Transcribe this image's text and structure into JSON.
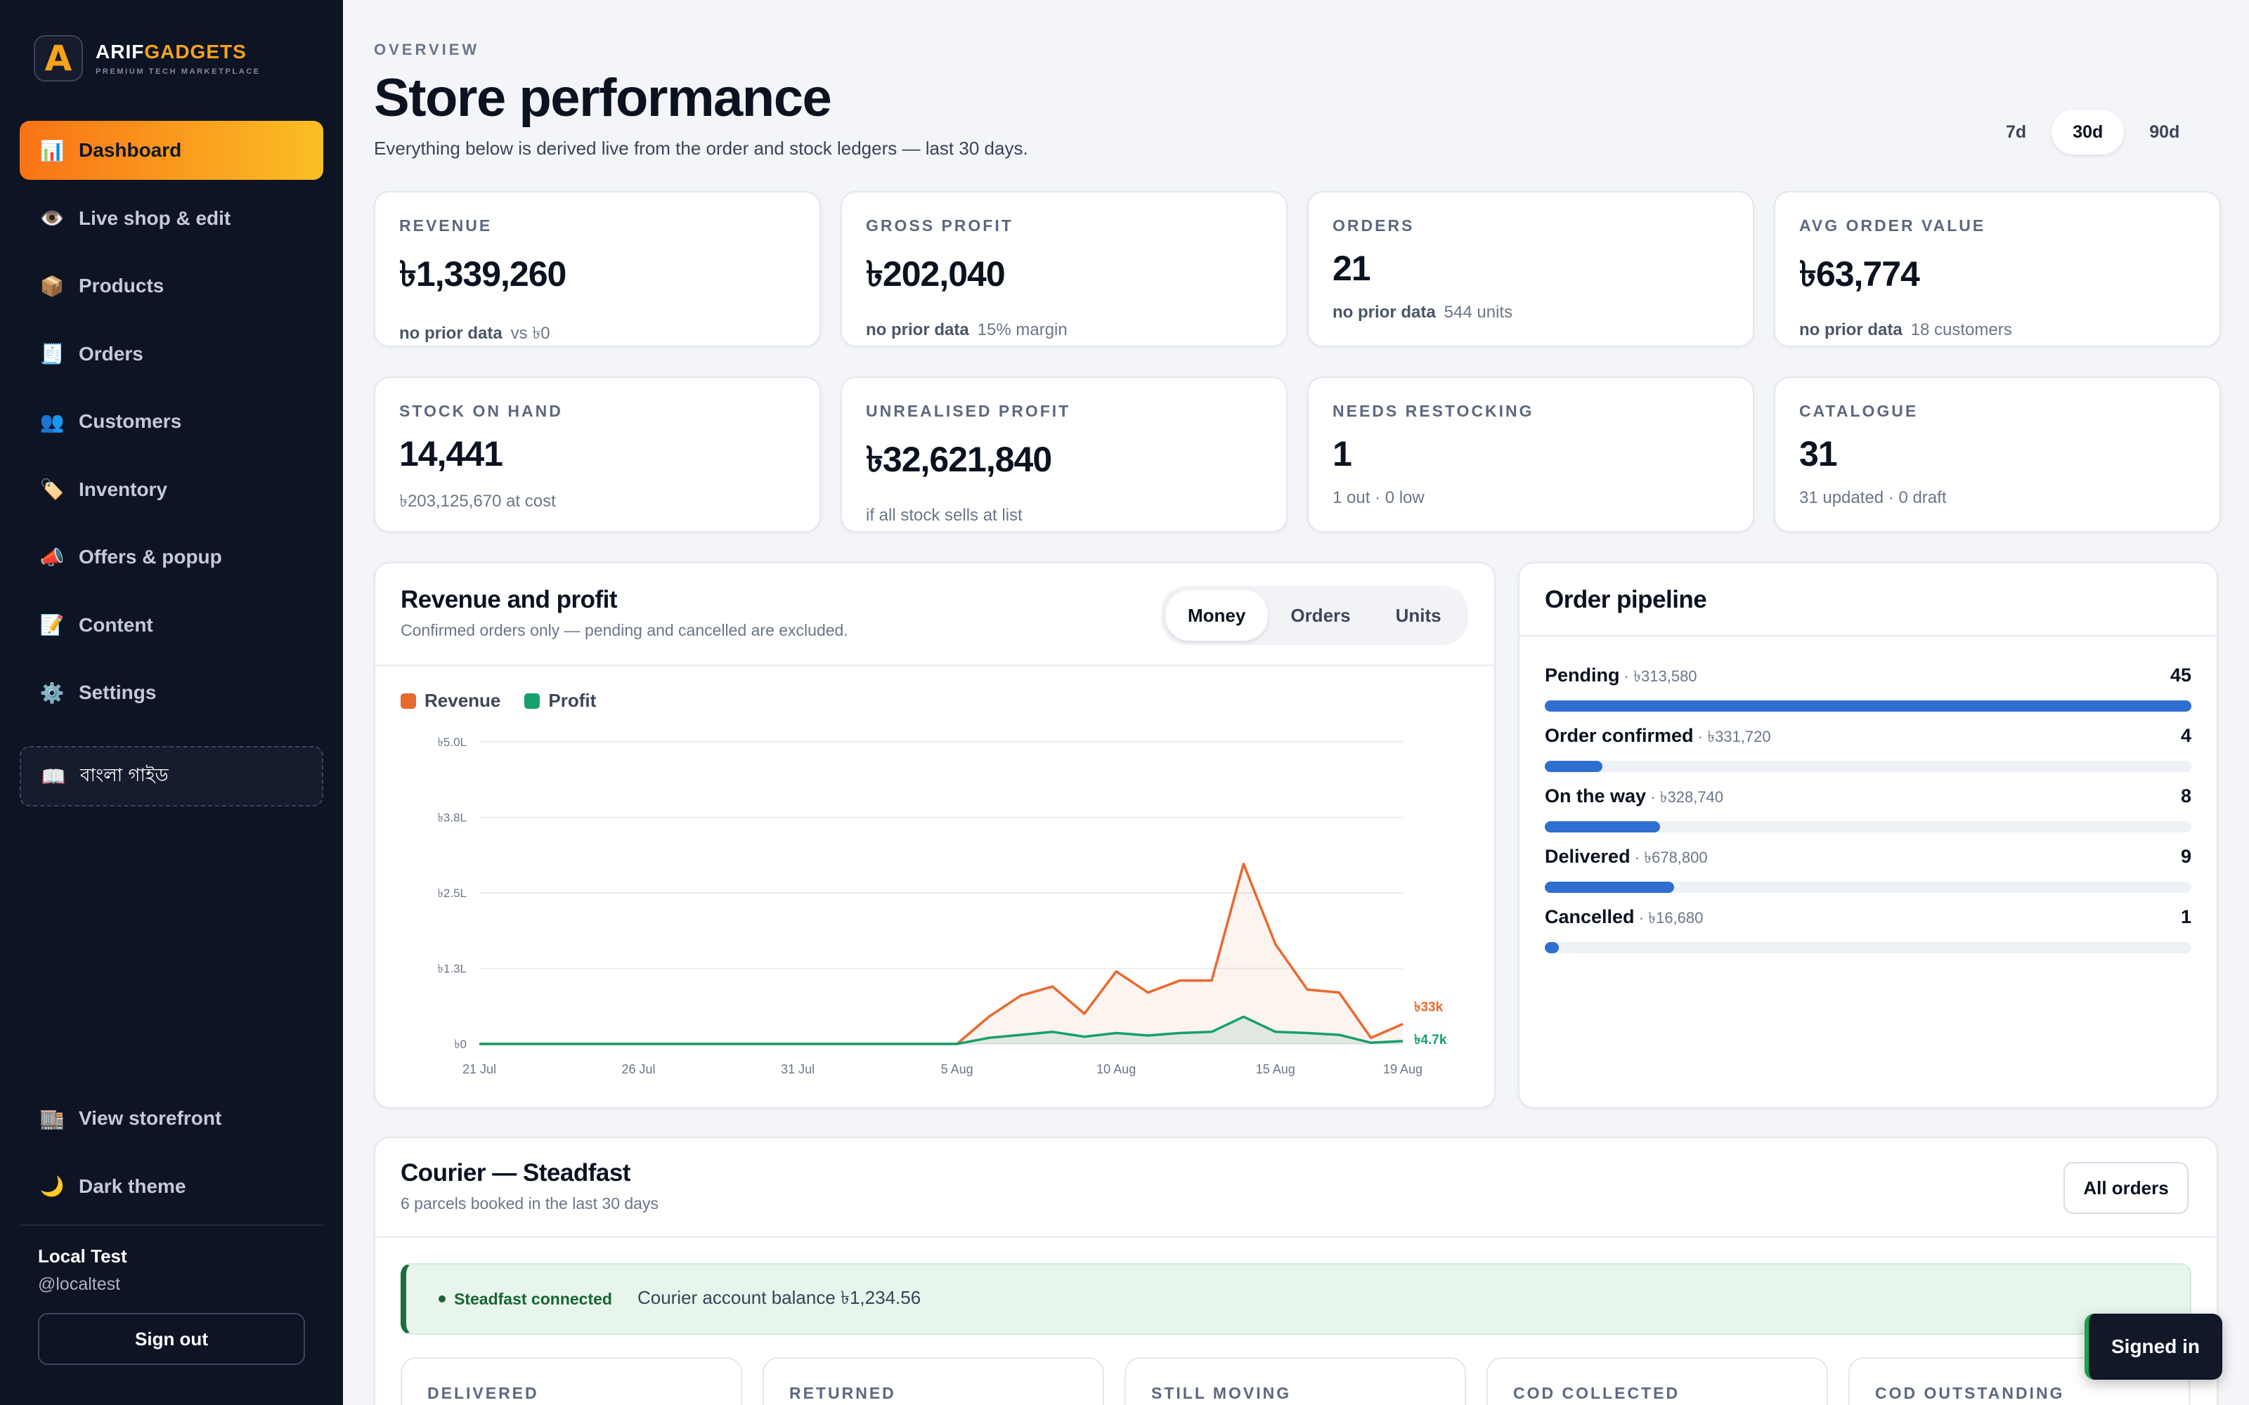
{
  "brand": {
    "name_main": "ARIF",
    "name_accent": "GADGETS",
    "tagline": "PREMIUM TECH MARKETPLACE",
    "logo_letter": "A"
  },
  "sidebar": {
    "items": [
      {
        "label": "Dashboard",
        "icon": "bar-chart-icon",
        "glyph": "📊",
        "active": true
      },
      {
        "label": "Live shop & edit",
        "icon": "eye-icon",
        "glyph": "👁️"
      },
      {
        "label": "Products",
        "icon": "box-icon",
        "glyph": "📦"
      },
      {
        "label": "Orders",
        "icon": "receipt-icon",
        "glyph": "🧾"
      },
      {
        "label": "Customers",
        "icon": "people-icon",
        "glyph": "👥"
      },
      {
        "label": "Inventory",
        "icon": "tag-icon",
        "glyph": "🏷️"
      },
      {
        "label": "Offers & popup",
        "icon": "megaphone-icon",
        "glyph": "📣"
      },
      {
        "label": "Content",
        "icon": "memo-icon",
        "glyph": "📝"
      },
      {
        "label": "Settings",
        "icon": "gear-icon",
        "glyph": "⚙️"
      }
    ],
    "guide": {
      "label": "বাংলা গাইড",
      "icon": "book-icon",
      "glyph": "📖"
    },
    "bottom": [
      {
        "label": "View storefront",
        "icon": "storefront-icon",
        "glyph": "🏬"
      },
      {
        "label": "Dark theme",
        "icon": "moon-icon",
        "glyph": "🌙"
      }
    ],
    "user": {
      "name": "Local Test",
      "handle": "@localtest"
    },
    "signout_label": "Sign out"
  },
  "header": {
    "eyebrow": "OVERVIEW",
    "title": "Store performance",
    "subtitle": "Everything below is derived live from the order and stock ledgers — last 30 days.",
    "ranges": [
      {
        "label": "7d"
      },
      {
        "label": "30d",
        "active": true
      },
      {
        "label": "90d"
      }
    ]
  },
  "kpis": [
    {
      "label": "REVENUE",
      "value": "৳1,339,260",
      "note_bold": "no prior data",
      "note": "vs ৳0"
    },
    {
      "label": "GROSS PROFIT",
      "value": "৳202,040",
      "note_bold": "no prior data",
      "note": "15% margin"
    },
    {
      "label": "ORDERS",
      "value": "21",
      "note_bold": "no prior data",
      "note": "544 units"
    },
    {
      "label": "AVG ORDER VALUE",
      "value": "৳63,774",
      "note_bold": "no prior data",
      "note": "18 customers"
    },
    {
      "label": "STOCK ON HAND",
      "value": "14,441",
      "note": "৳203,125,670 at cost"
    },
    {
      "label": "UNREALISED PROFIT",
      "value": "৳32,621,840",
      "note": "if all stock sells at list"
    },
    {
      "label": "NEEDS RESTOCKING",
      "value": "1",
      "note": "1 out · 0 low"
    },
    {
      "label": "CATALOGUE",
      "value": "31",
      "note": "31 updated · 0 draft"
    }
  ],
  "revenue_panel": {
    "title": "Revenue and profit",
    "subtitle": "Confirmed orders only — pending and cancelled are excluded.",
    "tabs": [
      {
        "label": "Money",
        "active": true
      },
      {
        "label": "Orders"
      },
      {
        "label": "Units"
      }
    ]
  },
  "chart_data": {
    "type": "area",
    "x_dates": [
      "21 Jul",
      "22 Jul",
      "23 Jul",
      "24 Jul",
      "25 Jul",
      "26 Jul",
      "27 Jul",
      "28 Jul",
      "29 Jul",
      "30 Jul",
      "31 Jul",
      "1 Aug",
      "2 Aug",
      "3 Aug",
      "4 Aug",
      "5 Aug",
      "6 Aug",
      "7 Aug",
      "8 Aug",
      "9 Aug",
      "10 Aug",
      "11 Aug",
      "12 Aug",
      "13 Aug",
      "14 Aug",
      "15 Aug",
      "16 Aug",
      "17 Aug",
      "18 Aug",
      "19 Aug"
    ],
    "x_tick_labels": [
      "21 Jul",
      "26 Jul",
      "31 Jul",
      "5 Aug",
      "10 Aug",
      "15 Aug",
      "19 Aug"
    ],
    "y_tick_labels": [
      "৳0",
      "৳1.3L",
      "৳2.5L",
      "৳3.8L",
      "৳5.0L"
    ],
    "y_ticks": [
      0,
      125000,
      250000,
      375000,
      500000
    ],
    "ylim": [
      0,
      500000
    ],
    "series": [
      {
        "name": "Revenue",
        "color": "#e8692f",
        "values": [
          0,
          0,
          0,
          0,
          0,
          0,
          0,
          0,
          0,
          0,
          0,
          0,
          0,
          0,
          0,
          0,
          45000,
          80000,
          95000,
          50000,
          120000,
          85000,
          105000,
          105000,
          298000,
          165000,
          90000,
          85000,
          10000,
          33000
        ],
        "end_label": "৳33k"
      },
      {
        "name": "Profit",
        "color": "#16a06b",
        "values": [
          0,
          0,
          0,
          0,
          0,
          0,
          0,
          0,
          0,
          0,
          0,
          0,
          0,
          0,
          0,
          0,
          10000,
          15000,
          20000,
          12000,
          18000,
          14000,
          18000,
          20000,
          45000,
          20000,
          18000,
          15000,
          2000,
          4700
        ],
        "end_label": "৳4.7k"
      }
    ],
    "grid": true,
    "legend": "top-left"
  },
  "pipeline": {
    "title": "Order pipeline",
    "max": 45,
    "rows": [
      {
        "name": "Pending",
        "amount": "৳313,580",
        "count": 45
      },
      {
        "name": "Order confirmed",
        "amount": "৳331,720",
        "count": 4
      },
      {
        "name": "On the way",
        "amount": "৳328,740",
        "count": 8
      },
      {
        "name": "Delivered",
        "amount": "৳678,800",
        "count": 9
      },
      {
        "name": "Cancelled",
        "amount": "৳16,680",
        "count": 1
      }
    ]
  },
  "courier": {
    "title": "Courier — Steadfast",
    "subtitle": "6 parcels booked in the last 30 days",
    "all_orders_label": "All orders",
    "status": "Steadfast connected",
    "balance": "Courier account balance ৳1,234.56",
    "stats": [
      {
        "label": "DELIVERED"
      },
      {
        "label": "RETURNED"
      },
      {
        "label": "STILL MOVING"
      },
      {
        "label": "COD COLLECTED"
      },
      {
        "label": "COD OUTSTANDING"
      }
    ]
  },
  "toast": {
    "label": "Signed in"
  }
}
